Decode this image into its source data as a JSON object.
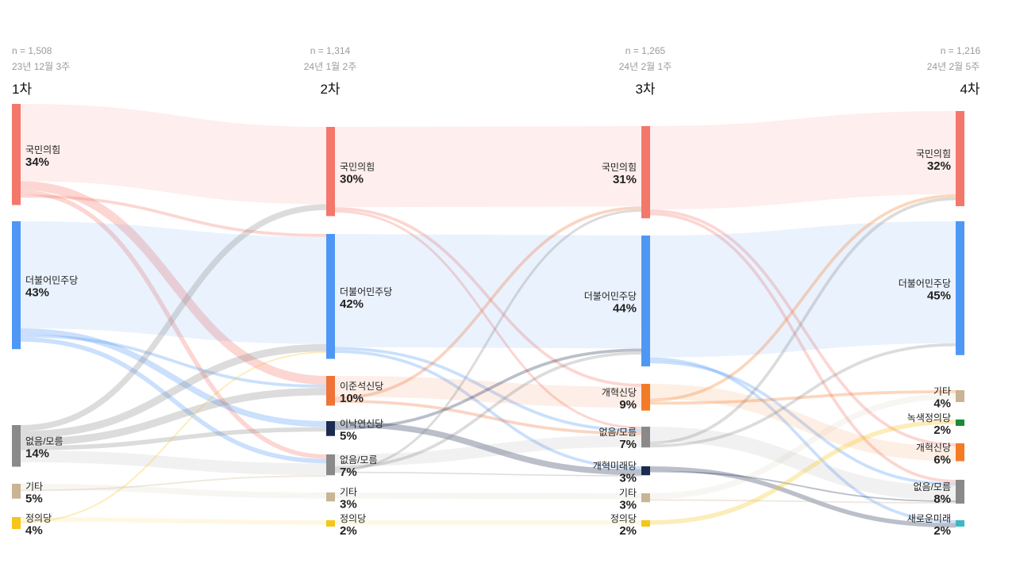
{
  "chart_data": {
    "type": "sankey",
    "unit": "%",
    "columns": [
      {
        "wave": "1차",
        "n": "n = 1,508",
        "date": "23년 12월 3주",
        "nodes": [
          {
            "id": "ppp",
            "name": "국민의힘",
            "value": 34,
            "pct": "34%",
            "color": "#f4776b"
          },
          {
            "id": "dem",
            "name": "더불어민주당",
            "value": 43,
            "pct": "43%",
            "color": "#4f97f5"
          },
          {
            "id": "none",
            "name": "없음/모름",
            "value": 14,
            "pct": "14%",
            "color": "#8a8a8a"
          },
          {
            "id": "etc",
            "name": "기타",
            "value": 5,
            "pct": "5%",
            "color": "#c9b496"
          },
          {
            "id": "justice",
            "name": "정의당",
            "value": 4,
            "pct": "4%",
            "color": "#f5c518"
          }
        ]
      },
      {
        "wave": "2차",
        "n": "n = 1,314",
        "date": "24년 1월 2주",
        "nodes": [
          {
            "id": "ppp",
            "name": "국민의힘",
            "value": 30,
            "pct": "30%",
            "color": "#f4776b"
          },
          {
            "id": "dem",
            "name": "더불어민주당",
            "value": 42,
            "pct": "42%",
            "color": "#4f97f5"
          },
          {
            "id": "ljs",
            "name": "이준석신당",
            "value": 10,
            "pct": "10%",
            "color": "#ee7438"
          },
          {
            "id": "lny",
            "name": "이낙연신당",
            "value": 5,
            "pct": "5%",
            "color": "#1b2a4e"
          },
          {
            "id": "none",
            "name": "없음/모름",
            "value": 7,
            "pct": "7%",
            "color": "#8a8a8a"
          },
          {
            "id": "etc",
            "name": "기타",
            "value": 3,
            "pct": "3%",
            "color": "#c9b496"
          },
          {
            "id": "justice",
            "name": "정의당",
            "value": 2,
            "pct": "2%",
            "color": "#f5c518"
          }
        ]
      },
      {
        "wave": "3차",
        "n": "n = 1,265",
        "date": "24년 2월 1주",
        "nodes": [
          {
            "id": "ppp",
            "name": "국민의힘",
            "value": 31,
            "pct": "31%",
            "color": "#f4776b"
          },
          {
            "id": "dem",
            "name": "더불어민주당",
            "value": 44,
            "pct": "44%",
            "color": "#4f97f5"
          },
          {
            "id": "reform",
            "name": "개혁신당",
            "value": 9,
            "pct": "9%",
            "color": "#f47b25"
          },
          {
            "id": "none",
            "name": "없음/모름",
            "value": 7,
            "pct": "7%",
            "color": "#8a8a8a"
          },
          {
            "id": "rfuture",
            "name": "개혁미래당",
            "value": 3,
            "pct": "3%",
            "color": "#1b2a4e"
          },
          {
            "id": "etc",
            "name": "기타",
            "value": 3,
            "pct": "3%",
            "color": "#c9b496"
          },
          {
            "id": "justice",
            "name": "정의당",
            "value": 2,
            "pct": "2%",
            "color": "#f5c518"
          }
        ]
      },
      {
        "wave": "4차",
        "n": "n = 1,216",
        "date": "24년 2월 5주",
        "nodes": [
          {
            "id": "ppp",
            "name": "국민의힘",
            "value": 32,
            "pct": "32%",
            "color": "#f4776b"
          },
          {
            "id": "dem",
            "name": "더불어민주당",
            "value": 45,
            "pct": "45%",
            "color": "#4f97f5"
          },
          {
            "id": "etc",
            "name": "기타",
            "value": 4,
            "pct": "4%",
            "color": "#c9b496"
          },
          {
            "id": "green",
            "name": "녹색정의당",
            "value": 2,
            "pct": "2%",
            "color": "#1a8a3c"
          },
          {
            "id": "reform",
            "name": "개혁신당",
            "value": 6,
            "pct": "6%",
            "color": "#f47b25"
          },
          {
            "id": "none",
            "name": "없음/모름",
            "value": 8,
            "pct": "8%",
            "color": "#8a8a8a"
          },
          {
            "id": "newfuture",
            "name": "새로운미래",
            "value": 2,
            "pct": "2%",
            "color": "#3cb8c4"
          }
        ]
      }
    ],
    "links": [
      [
        [
          0,
          0,
          0,
          26
        ],
        [
          0,
          0,
          2,
          3
        ],
        [
          0,
          0,
          4,
          1.5
        ],
        [
          0,
          0,
          1,
          1
        ],
        [
          0,
          1,
          1,
          36
        ],
        [
          0,
          1,
          3,
          2
        ],
        [
          0,
          1,
          2,
          1
        ],
        [
          0,
          1,
          4,
          1.5
        ],
        [
          0,
          2,
          0,
          2
        ],
        [
          0,
          2,
          1,
          2.5
        ],
        [
          0,
          2,
          2,
          2.5
        ],
        [
          0,
          2,
          3,
          1.5
        ],
        [
          0,
          2,
          4,
          4
        ],
        [
          0,
          3,
          5,
          2
        ],
        [
          0,
          3,
          4,
          0.5
        ],
        [
          0,
          4,
          6,
          1.5
        ],
        [
          0,
          4,
          1,
          0.5
        ]
      ],
      [
        [
          1,
          0,
          0,
          27
        ],
        [
          1,
          0,
          2,
          1
        ],
        [
          1,
          0,
          3,
          0.8
        ],
        [
          1,
          1,
          1,
          38
        ],
        [
          1,
          1,
          3,
          1
        ],
        [
          1,
          1,
          4,
          1
        ],
        [
          1,
          2,
          2,
          7
        ],
        [
          1,
          2,
          0,
          1
        ],
        [
          1,
          2,
          3,
          1
        ],
        [
          1,
          3,
          4,
          2
        ],
        [
          1,
          3,
          1,
          1
        ],
        [
          1,
          4,
          3,
          4
        ],
        [
          1,
          4,
          1,
          1
        ],
        [
          1,
          4,
          0,
          0.8
        ],
        [
          1,
          4,
          4,
          0.4
        ],
        [
          1,
          5,
          5,
          2
        ],
        [
          1,
          6,
          6,
          1.5
        ]
      ],
      [
        [
          2,
          0,
          0,
          28
        ],
        [
          2,
          0,
          4,
          1
        ],
        [
          2,
          0,
          5,
          1
        ],
        [
          2,
          1,
          1,
          41
        ],
        [
          2,
          1,
          6,
          1
        ],
        [
          2,
          1,
          5,
          1
        ],
        [
          2,
          2,
          4,
          5
        ],
        [
          2,
          2,
          0,
          1
        ],
        [
          2,
          2,
          2,
          1
        ],
        [
          2,
          3,
          5,
          5
        ],
        [
          2,
          3,
          0,
          1
        ],
        [
          2,
          3,
          1,
          1
        ],
        [
          2,
          4,
          6,
          1.5
        ],
        [
          2,
          4,
          5,
          0.5
        ],
        [
          2,
          5,
          2,
          2
        ],
        [
          2,
          5,
          5,
          0.5
        ],
        [
          2,
          6,
          3,
          1.5
        ]
      ]
    ]
  }
}
